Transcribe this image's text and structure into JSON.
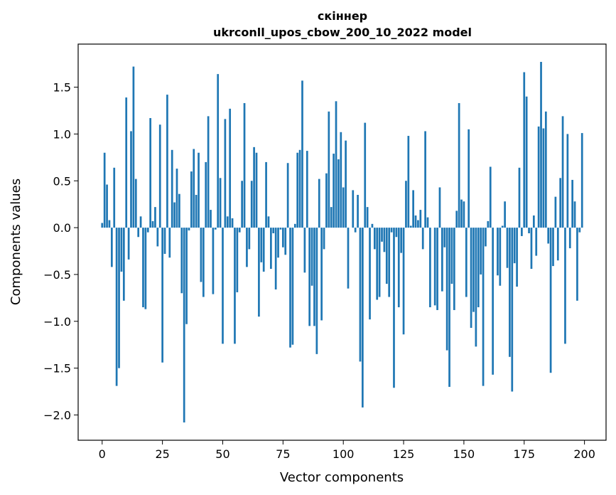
{
  "chart_data": {
    "type": "bar",
    "title": "скіннер",
    "subtitle": "ukrconll_upos_cbow_200_10_2022 model",
    "xlabel": "Vector components",
    "ylabel": "Components values",
    "xlim": [
      -9.95,
      208.95
    ],
    "ylim": [
      -2.27,
      1.96
    ],
    "xticks": [
      0,
      25,
      50,
      75,
      100,
      125,
      150,
      175,
      200
    ],
    "yticks": [
      -2.0,
      -1.5,
      -1.0,
      -0.5,
      0.0,
      0.5,
      1.0,
      1.5
    ],
    "grid": false,
    "bar_color": "#1f77b4",
    "x": [
      0,
      1,
      2,
      3,
      4,
      5,
      6,
      7,
      8,
      9,
      10,
      11,
      12,
      13,
      14,
      15,
      16,
      17,
      18,
      19,
      20,
      21,
      22,
      23,
      24,
      25,
      26,
      27,
      28,
      29,
      30,
      31,
      32,
      33,
      34,
      35,
      36,
      37,
      38,
      39,
      40,
      41,
      42,
      43,
      44,
      45,
      46,
      47,
      48,
      49,
      50,
      51,
      52,
      53,
      54,
      55,
      56,
      57,
      58,
      59,
      60,
      61,
      62,
      63,
      64,
      65,
      66,
      67,
      68,
      69,
      70,
      71,
      72,
      73,
      74,
      75,
      76,
      77,
      78,
      79,
      80,
      81,
      82,
      83,
      84,
      85,
      86,
      87,
      88,
      89,
      90,
      91,
      92,
      93,
      94,
      95,
      96,
      97,
      98,
      99,
      100,
      101,
      102,
      103,
      104,
      105,
      106,
      107,
      108,
      109,
      110,
      111,
      112,
      113,
      114,
      115,
      116,
      117,
      118,
      119,
      120,
      121,
      122,
      123,
      124,
      125,
      126,
      127,
      128,
      129,
      130,
      131,
      132,
      133,
      134,
      135,
      136,
      137,
      138,
      139,
      140,
      141,
      142,
      143,
      144,
      145,
      146,
      147,
      148,
      149,
      150,
      151,
      152,
      153,
      154,
      155,
      156,
      157,
      158,
      159,
      160,
      161,
      162,
      163,
      164,
      165,
      166,
      167,
      168,
      169,
      170,
      171,
      172,
      173,
      174,
      175,
      176,
      177,
      178,
      179,
      180,
      181,
      182,
      183,
      184,
      185,
      186,
      187,
      188,
      189,
      190,
      191,
      192,
      193,
      194,
      195,
      196,
      197,
      198,
      199
    ],
    "values": [
      0.05,
      0.8,
      0.46,
      0.08,
      -0.42,
      0.64,
      -1.69,
      -1.5,
      -0.47,
      -0.78,
      1.39,
      -0.34,
      1.03,
      1.72,
      0.52,
      -0.1,
      0.12,
      -0.85,
      -0.87,
      -0.05,
      1.17,
      0.07,
      0.22,
      -0.2,
      1.1,
      -1.44,
      -0.28,
      1.42,
      -0.32,
      0.83,
      0.27,
      0.63,
      0.36,
      -0.7,
      -2.08,
      -1.03,
      -0.03,
      0.6,
      0.84,
      0.35,
      0.8,
      -0.58,
      -0.74,
      0.7,
      1.19,
      0.19,
      -0.71,
      -0.02,
      1.64,
      0.53,
      -1.24,
      1.16,
      0.12,
      1.27,
      0.1,
      -1.24,
      -0.69,
      -0.05,
      0.5,
      1.33,
      -0.42,
      -0.23,
      0.5,
      0.86,
      0.8,
      -0.95,
      -0.37,
      -0.47,
      0.7,
      0.12,
      -0.44,
      -0.06,
      -0.66,
      -0.32,
      -0.02,
      -0.21,
      -0.29,
      0.69,
      -1.28,
      -1.25,
      0.04,
      0.8,
      0.83,
      1.57,
      -0.48,
      0.82,
      -1.05,
      -0.62,
      -1.05,
      -1.35,
      0.52,
      -0.99,
      -0.23,
      0.58,
      1.24,
      0.22,
      0.79,
      1.35,
      0.73,
      1.02,
      0.43,
      0.93,
      -0.65,
      0.0,
      0.4,
      -0.05,
      0.35,
      -1.43,
      -1.92,
      1.12,
      0.22,
      -0.98,
      0.04,
      -0.23,
      -0.77,
      -0.74,
      -0.15,
      -0.26,
      -0.6,
      -0.74,
      -0.05,
      -1.71,
      -0.1,
      -0.85,
      -0.27,
      -1.14,
      0.5,
      0.98,
      0.02,
      0.4,
      0.13,
      0.08,
      0.19,
      -0.23,
      1.03,
      0.11,
      -0.85,
      0.0,
      -0.83,
      -0.88,
      0.43,
      -0.68,
      -0.21,
      -1.31,
      -1.7,
      -0.6,
      -0.88,
      0.18,
      1.33,
      0.3,
      0.28,
      -0.74,
      1.05,
      -1.07,
      -0.9,
      -1.27,
      -0.85,
      -0.5,
      -1.69,
      -0.2,
      0.07,
      0.65,
      -1.57,
      0.0,
      -0.51,
      -0.62,
      0.02,
      0.28,
      -0.43,
      -1.38,
      -1.75,
      -0.38,
      -0.63,
      0.64,
      -0.09,
      1.66,
      1.4,
      -0.06,
      -0.44,
      0.13,
      -0.3,
      1.08,
      1.77,
      1.06,
      1.24,
      -0.17,
      -1.55,
      -0.41,
      0.33,
      -0.35,
      0.53,
      1.19,
      -1.24,
      1.0,
      -0.22,
      0.51,
      0.28,
      -0.78,
      -0.05,
      1.01
    ]
  }
}
